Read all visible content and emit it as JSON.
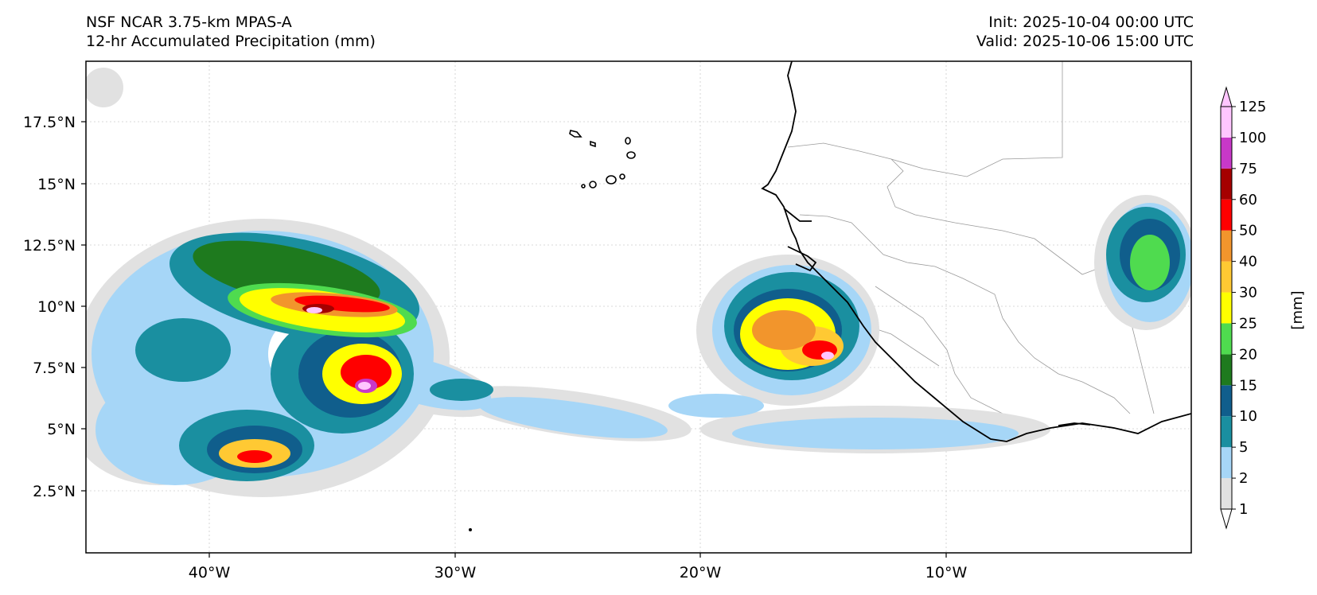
{
  "header": {
    "left_line1": "NSF NCAR 3.75-km MPAS-A",
    "left_line2": "12-hr Accumulated Precipitation (mm)",
    "right_line1": "Init: 2025-10-04 00:00 UTC",
    "right_line2": "Valid: 2025-10-06 15:00 UTC"
  },
  "axes": {
    "lon_labels": [
      "40°W",
      "30°W",
      "20°W",
      "10°W"
    ],
    "lat_labels": [
      "17.5°N",
      "15°N",
      "12.5°N",
      "10°N",
      "7.5°N",
      "5°N",
      "2.5°N"
    ]
  },
  "colorbar": {
    "unit_label": "[mm]",
    "levels": [
      "1",
      "2",
      "5",
      "10",
      "15",
      "20",
      "25",
      "30",
      "40",
      "50",
      "60",
      "75",
      "100",
      "125"
    ],
    "colors": [
      "#ffffff",
      "#e1e1e1",
      "#a6d6f7",
      "#1a8fa0",
      "#105e8c",
      "#1e7a1e",
      "#4fdb4f",
      "#ffff00",
      "#ffc933",
      "#f2952c",
      "#ff0000",
      "#a50000",
      "#c838c8",
      "#ffc6ff"
    ]
  },
  "map_colors": {
    "ocean_background": "#ffffff",
    "coastline": "#000000",
    "borders": "#9a9a9a",
    "gridlines": "#cccccc"
  }
}
